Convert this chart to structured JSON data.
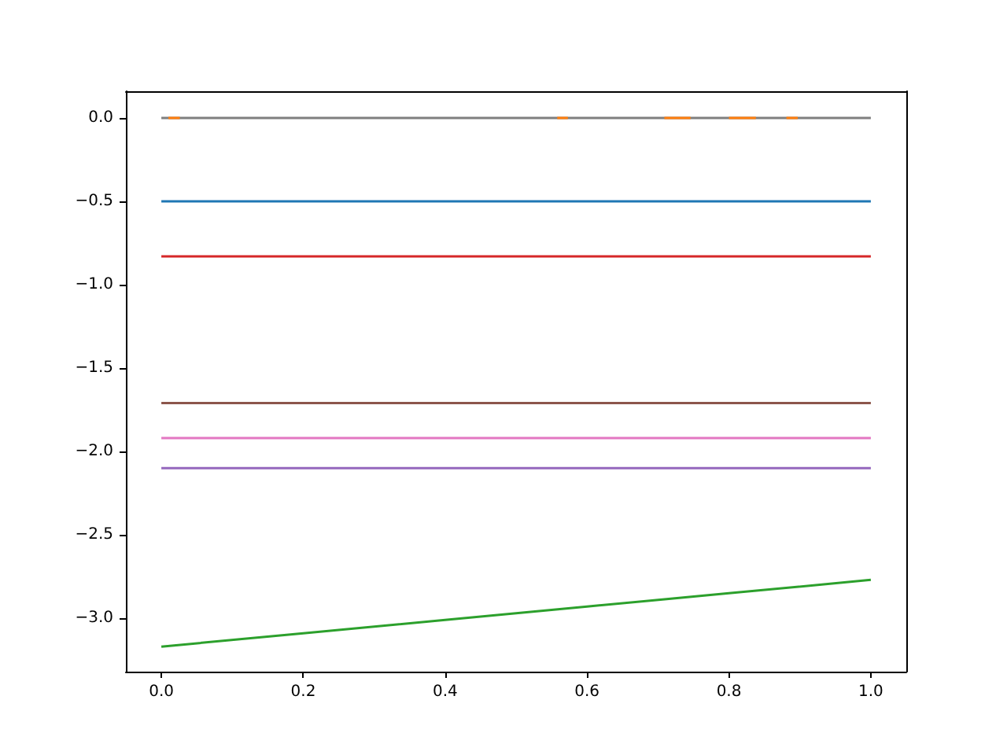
{
  "chart_data": {
    "type": "line",
    "xlim": [
      -0.05,
      1.05
    ],
    "ylim": [
      -3.32,
      0.16
    ],
    "xticks": [
      {
        "value": 0,
        "label": "0.0"
      },
      {
        "value": 0.2,
        "label": "0.2"
      },
      {
        "value": 0.4,
        "label": "0.4"
      },
      {
        "value": 0.6,
        "label": "0.6"
      },
      {
        "value": 0.8,
        "label": "0.8"
      },
      {
        "value": 1,
        "label": "1.0"
      }
    ],
    "yticks": [
      {
        "value": -3,
        "label": "−3.0"
      },
      {
        "value": -2.5,
        "label": "−2.5"
      },
      {
        "value": -2,
        "label": "−2.0"
      },
      {
        "value": -1.5,
        "label": "−1.5"
      },
      {
        "value": -1,
        "label": "−1.0"
      },
      {
        "value": -0.5,
        "label": "−0.5"
      },
      {
        "value": 0,
        "label": "0.0"
      }
    ],
    "grid": false,
    "marker": "none",
    "line_style": "solid",
    "series": [
      {
        "color": "#1f77b4",
        "x": [
          0,
          1
        ],
        "values": [
          -0.5,
          -0.5
        ]
      },
      {
        "color": "#2ca02c",
        "x": [
          0,
          0.2,
          0.4,
          0.6,
          0.8,
          1
        ],
        "values": [
          -3.17,
          -3.09,
          -3.01,
          -2.93,
          -2.85,
          -2.77
        ]
      },
      {
        "color": "#d62728",
        "x": [
          0,
          1
        ],
        "values": [
          -0.83,
          -0.83
        ]
      },
      {
        "color": "#9467bd",
        "x": [
          0,
          1
        ],
        "values": [
          -2.1,
          -2.1
        ]
      },
      {
        "color": "#8c564b",
        "x": [
          0,
          1
        ],
        "values": [
          -1.71,
          -1.71
        ]
      },
      {
        "color": "#e377c2",
        "x": [
          0,
          1
        ],
        "values": [
          -1.92,
          -1.92
        ]
      },
      {
        "color": "#7f7f7f",
        "x": [
          0,
          1
        ],
        "values": [
          0,
          0
        ]
      },
      {
        "color": "#ff7f0e",
        "x": [
          0.01,
          0.026,
          0.3,
          0.558,
          0.573,
          0.65,
          0.709,
          0.746,
          0.77,
          0.8,
          0.838,
          0.86,
          0.881,
          0.897
        ],
        "values": [
          0,
          0,
          null,
          0,
          0,
          null,
          0,
          0,
          null,
          0,
          0,
          null,
          0,
          0
        ]
      }
    ]
  }
}
